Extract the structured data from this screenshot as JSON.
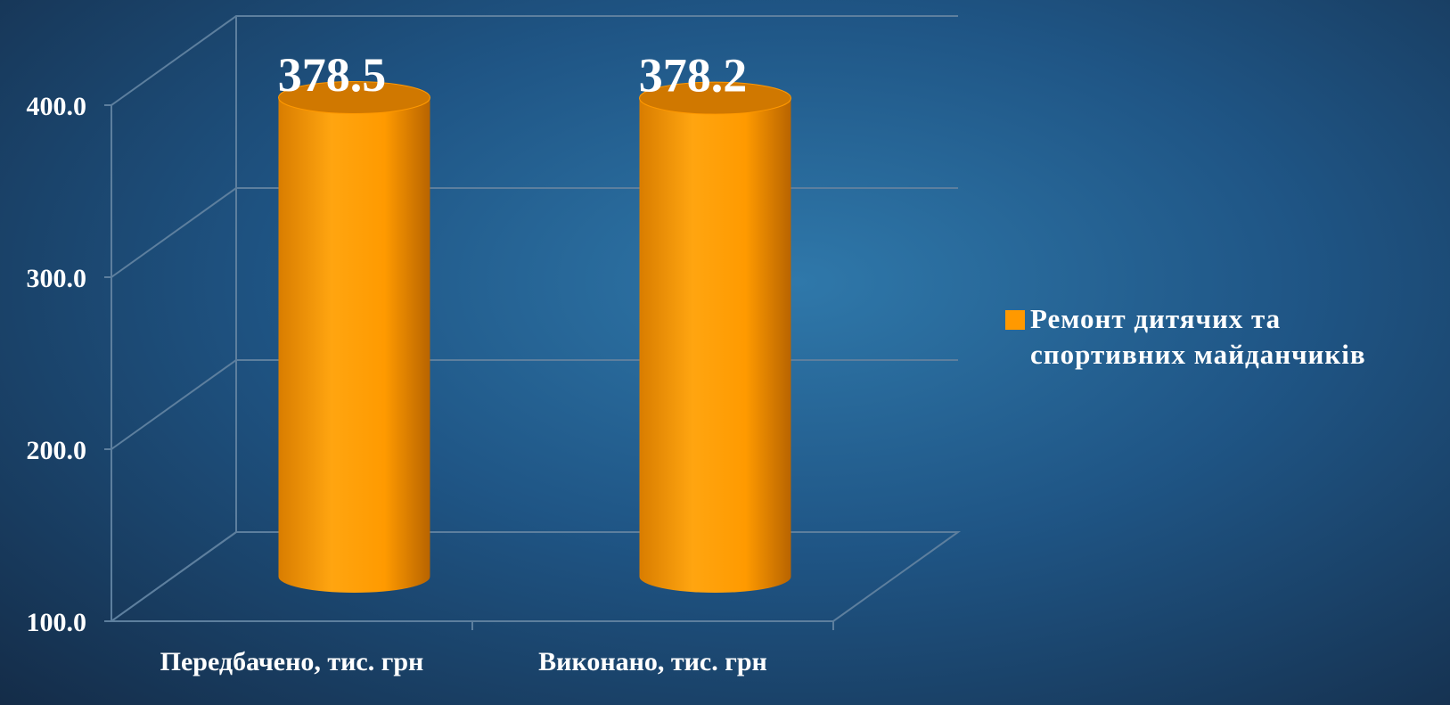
{
  "chart_data": {
    "type": "bar3d",
    "categories": [
      "Передбачено, тис. грн",
      "Виконано, тис. грн"
    ],
    "series": [
      {
        "name": "Ремонт дитячих та спортивних майданчиків",
        "color": "#ff9900",
        "values": [
          378.5,
          378.2
        ]
      }
    ],
    "ylim": [
      100,
      400
    ],
    "yticks": [
      {
        "value": 100,
        "label": "100.0"
      },
      {
        "value": 200,
        "label": "200.0"
      },
      {
        "value": 300,
        "label": "300.0"
      },
      {
        "value": 400,
        "label": "400.0"
      }
    ],
    "grid": true,
    "legend": "right"
  }
}
